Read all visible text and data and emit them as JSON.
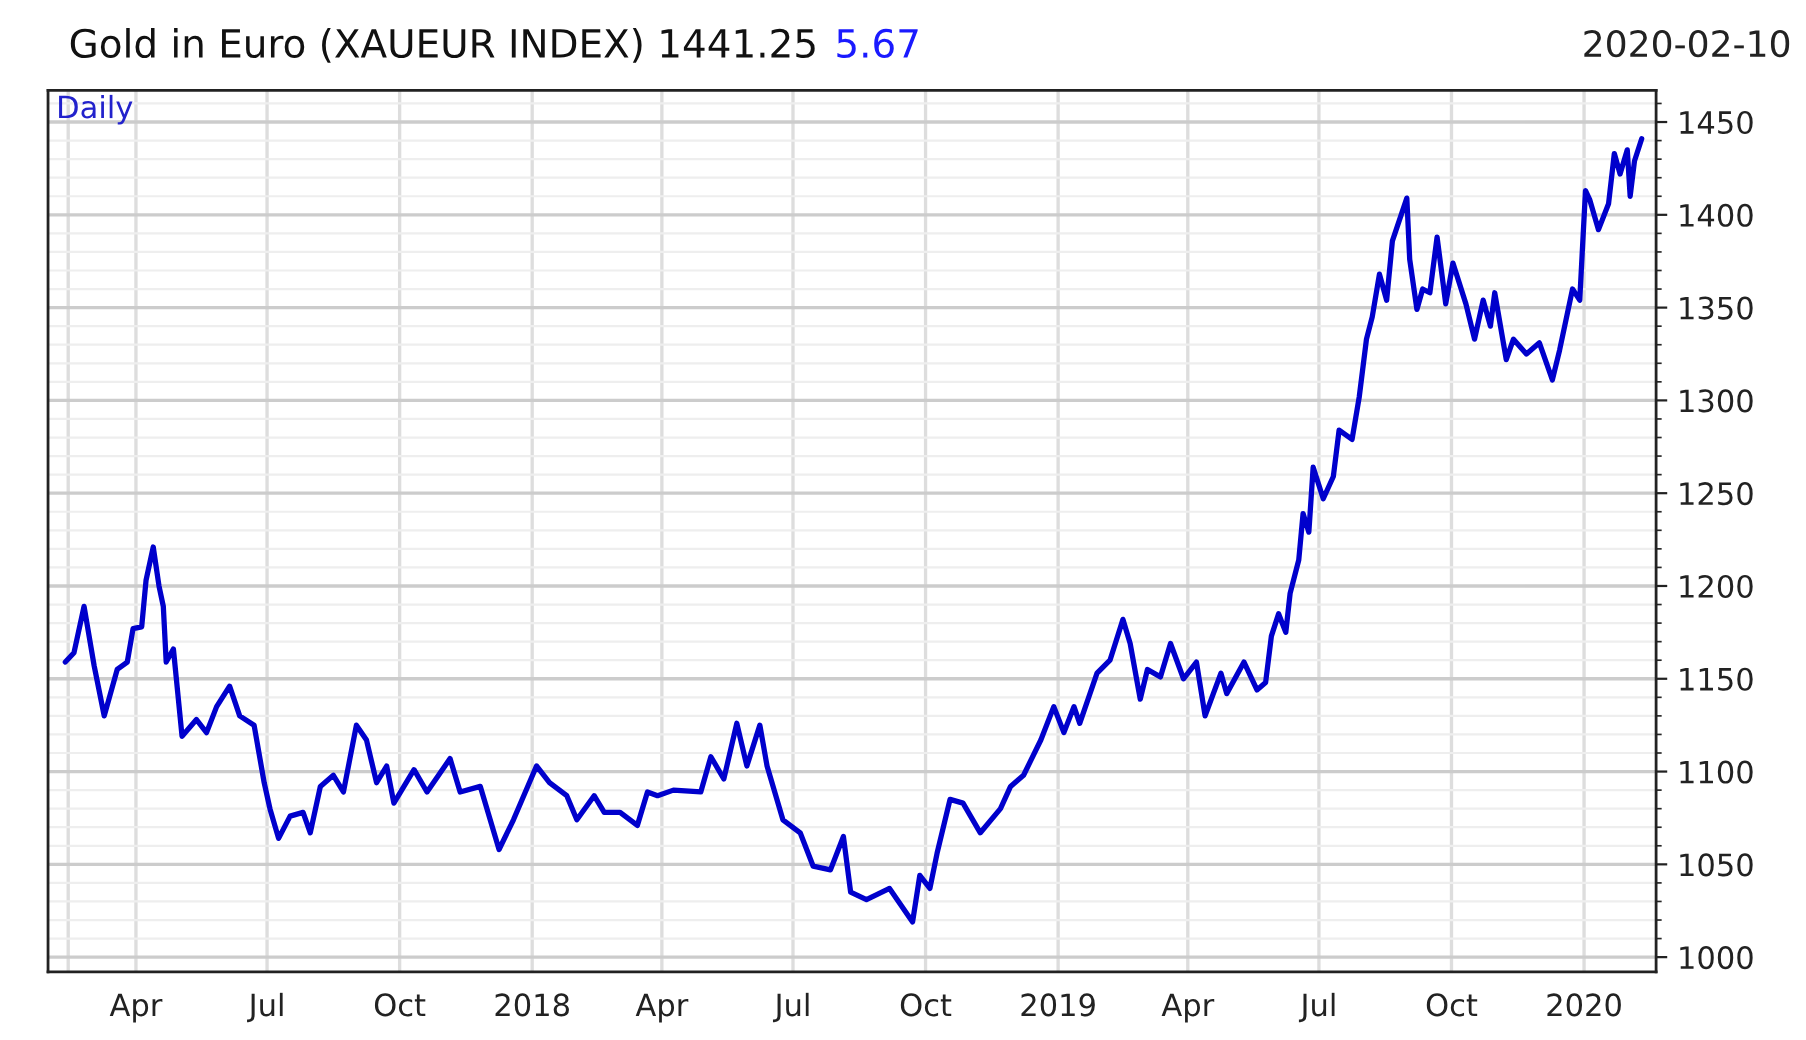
{
  "chart_data": {
    "type": "line",
    "title": "Gold in Euro (XAUEUR INDEX) 1441.25",
    "annotations": [
      "5.67",
      "2020-02-10",
      "Daily"
    ],
    "x": [
      "2017-02-11",
      "2017-02-17",
      "2017-02-24",
      "2017-03-03",
      "2017-03-10",
      "2017-03-19",
      "2017-03-26",
      "2017-03-30",
      "2017-04-05",
      "2017-04-08",
      "2017-04-13",
      "2017-04-17",
      "2017-04-20",
      "2017-04-22",
      "2017-04-27",
      "2017-05-03",
      "2017-05-13",
      "2017-05-20",
      "2017-05-27",
      "2017-06-05",
      "2017-06-12",
      "2017-06-22",
      "2017-06-29",
      "2017-07-03",
      "2017-07-09",
      "2017-07-17",
      "2017-07-26",
      "2017-07-31",
      "2017-08-07",
      "2017-08-16",
      "2017-08-23",
      "2017-09-01",
      "2017-09-08",
      "2017-09-15",
      "2017-09-22",
      "2017-09-27",
      "2017-10-11",
      "2017-10-20",
      "2017-11-05",
      "2017-11-12",
      "2017-11-26",
      "2017-12-09",
      "2017-12-19",
      "2018-01-04",
      "2018-01-13",
      "2018-01-25",
      "2018-02-01",
      "2018-02-13",
      "2018-02-20",
      "2018-03-03",
      "2018-03-15",
      "2018-03-22",
      "2018-03-29",
      "2018-04-09",
      "2018-04-28",
      "2018-05-05",
      "2018-05-14",
      "2018-05-23",
      "2018-05-30",
      "2018-06-08",
      "2018-06-13",
      "2018-06-24",
      "2018-07-06",
      "2018-07-15",
      "2018-07-27",
      "2018-08-05",
      "2018-08-10",
      "2018-08-21",
      "2018-09-06",
      "2018-09-22",
      "2018-09-27",
      "2018-10-04",
      "2018-10-09",
      "2018-10-18",
      "2018-10-27",
      "2018-11-08",
      "2018-11-22",
      "2018-11-29",
      "2018-12-08",
      "2018-12-20",
      "2018-12-29",
      "2019-01-05",
      "2019-01-12",
      "2019-01-16",
      "2019-01-28",
      "2019-02-06",
      "2019-02-15",
      "2019-02-20",
      "2019-02-27",
      "2019-03-04",
      "2019-03-13",
      "2019-03-20",
      "2019-03-29",
      "2019-04-07",
      "2019-04-13",
      "2019-04-24",
      "2019-04-28",
      "2019-05-10",
      "2019-05-19",
      "2019-05-25",
      "2019-05-29",
      "2019-06-03",
      "2019-06-08",
      "2019-06-11",
      "2019-06-17",
      "2019-06-20",
      "2019-06-24",
      "2019-06-27",
      "2019-07-04",
      "2019-07-11",
      "2019-07-15",
      "2019-07-24",
      "2019-07-29",
      "2019-08-03",
      "2019-08-07",
      "2019-08-12",
      "2019-08-17",
      "2019-08-21",
      "2019-08-31",
      "2019-09-02",
      "2019-09-07",
      "2019-09-11",
      "2019-09-16",
      "2019-09-21",
      "2019-09-27",
      "2019-10-02",
      "2019-10-11",
      "2019-10-17",
      "2019-10-23",
      "2019-10-28",
      "2019-10-31",
      "2019-11-08",
      "2019-11-13",
      "2019-11-22",
      "2019-12-01",
      "2019-12-10",
      "2019-12-15",
      "2019-12-24",
      "2019-12-29",
      "2020-01-02",
      "2020-01-05",
      "2020-01-11",
      "2020-01-18",
      "2020-01-22",
      "2020-01-26",
      "2020-01-31",
      "2020-02-02",
      "2020-02-05",
      "2020-02-10"
    ],
    "series": [
      {
        "color": "#0000cc",
        "values": [
          1159,
          1164,
          1189,
          1157,
          1130,
          1155,
          1159,
          1177,
          1178,
          1203,
          1221,
          1200,
          1189,
          1159,
          1166,
          1119,
          1128,
          1121,
          1135,
          1146,
          1130,
          1125,
          1094,
          1080,
          1064,
          1076,
          1078,
          1067,
          1092,
          1098,
          1089,
          1125,
          1117,
          1094,
          1103,
          1083,
          1101,
          1089,
          1107,
          1089,
          1092,
          1058,
          1074,
          1103,
          1094,
          1087,
          1074,
          1087,
          1078,
          1078,
          1071,
          1089,
          1087,
          1090,
          1089,
          1108,
          1096,
          1126,
          1103,
          1125,
          1103,
          1074,
          1067,
          1049,
          1047,
          1065,
          1035,
          1031,
          1037,
          1019,
          1044,
          1037,
          1056,
          1085,
          1083,
          1067,
          1080,
          1092,
          1098,
          1117,
          1135,
          1121,
          1135,
          1126,
          1153,
          1160,
          1182,
          1169,
          1139,
          1155,
          1151,
          1169,
          1150,
          1159,
          1130,
          1153,
          1142,
          1159,
          1144,
          1148,
          1173,
          1185,
          1175,
          1196,
          1214,
          1239,
          1229,
          1264,
          1247,
          1259,
          1284,
          1279,
          1302,
          1333,
          1345,
          1368,
          1354,
          1386,
          1409,
          1376,
          1349,
          1360,
          1358,
          1388,
          1352,
          1374,
          1352,
          1333,
          1354,
          1340,
          1358,
          1322,
          1333,
          1325,
          1331,
          1311,
          1327,
          1360,
          1354,
          1413,
          1408,
          1392,
          1406,
          1433,
          1422,
          1435,
          1410,
          1429,
          1441
        ]
      }
    ],
    "xlim": [
      "2017-01-30",
      "2020-02-20"
    ],
    "xticks": [
      {
        "value": "2017-02-13",
        "label": null
      },
      {
        "value": "2017-04-01",
        "label": "Apr"
      },
      {
        "value": "2017-07-01",
        "label": "Jul"
      },
      {
        "value": "2017-10-01",
        "label": "Oct"
      },
      {
        "value": "2018-01-01",
        "label": "2018"
      },
      {
        "value": "2018-04-01",
        "label": "Apr"
      },
      {
        "value": "2018-07-01",
        "label": "Jul"
      },
      {
        "value": "2018-10-01",
        "label": "Oct"
      },
      {
        "value": "2019-01-01",
        "label": "2019"
      },
      {
        "value": "2019-04-01",
        "label": "Apr"
      },
      {
        "value": "2019-07-01",
        "label": "Jul"
      },
      {
        "value": "2019-10-01",
        "label": "Oct"
      },
      {
        "value": "2020-01-01",
        "label": "2020"
      }
    ],
    "ylim": [
      992,
      1467
    ],
    "yticks": [
      1000,
      1050,
      1100,
      1150,
      1200,
      1250,
      1300,
      1350,
      1400,
      1450
    ],
    "grid": true,
    "marker": "none",
    "line_style": "solid"
  }
}
